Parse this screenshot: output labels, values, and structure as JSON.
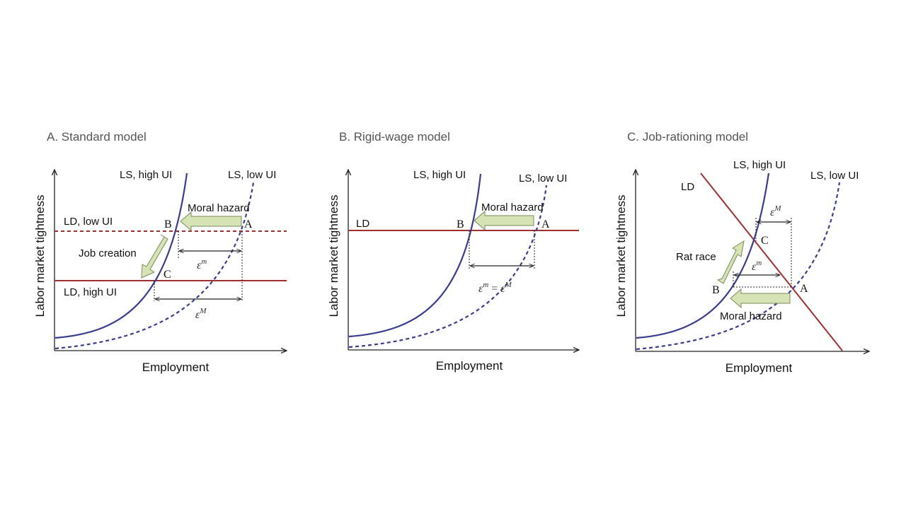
{
  "colors": {
    "ls_curve": "#3a3d8f",
    "ld_curve": "#a03030",
    "arrow_fill": "#d5e3b5",
    "arrow_stroke": "#7a8a5a",
    "axis": "#222222",
    "title": "#555555"
  },
  "panels": [
    {
      "title": "A. Standard model",
      "xlabel": "Employment",
      "ylabel": "Labor market tightness",
      "labels": {
        "ls_high": "LS, high UI",
        "ls_low": "LS, low UI",
        "ld_low": "LD, low UI",
        "ld_high": "LD, high UI",
        "moral_hazard": "Moral hazard",
        "job_creation": "Job creation"
      },
      "points": {
        "a": "A",
        "b": "B",
        "c": "C"
      },
      "eps_small": {
        "base": "ε",
        "sup": "m"
      },
      "eps_big": {
        "base": "ε",
        "sup": "M"
      }
    },
    {
      "title": "B. Rigid-wage model",
      "xlabel": "Employment",
      "ylabel": "Labor market tightness",
      "labels": {
        "ls_high": "LS,  high UI",
        "ls_low": "LS, low UI",
        "ld": "LD",
        "moral_hazard": "Moral hazard"
      },
      "points": {
        "a": "A",
        "b": "B"
      },
      "eps_eq": {
        "base1": "ε",
        "sup1": "m",
        "eq": " = ",
        "base2": "ε",
        "sup2": "M"
      }
    },
    {
      "title": "C. Job-rationing model",
      "xlabel": "Employment",
      "ylabel": "Labor market tightness",
      "labels": {
        "ls_high": "LS, high UI",
        "ls_low": "LS, low UI",
        "ld": "LD",
        "rat_race": "Rat race",
        "moral_hazard": "Moral hazard"
      },
      "points": {
        "a": "A",
        "b": "B",
        "c": "C"
      },
      "eps_big": {
        "base": "ε",
        "sup": "M"
      },
      "eps_small": {
        "base": "ε",
        "sup": "m"
      }
    }
  ]
}
